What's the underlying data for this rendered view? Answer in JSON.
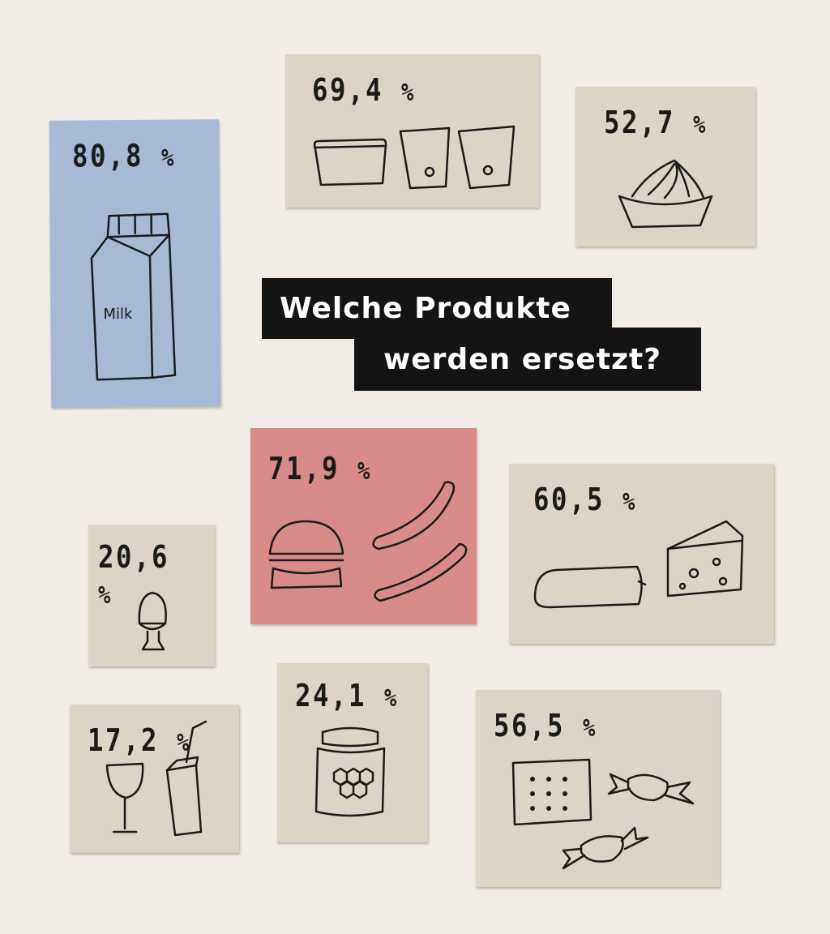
{
  "title": {
    "line1": "Welche Produkte",
    "line2": "werden ersetzt?"
  },
  "colors": {
    "background": "#f1ece6",
    "card": "#ddd4c8",
    "highlight_blue": "#a6b9d7",
    "highlight_red": "#d98c87",
    "ink": "#1b1b1b"
  },
  "products": [
    {
      "value": "80,8",
      "unit": "%",
      "icon": "milk-carton-icon",
      "icon_label": "Milk"
    },
    {
      "value": "69,4",
      "unit": "%",
      "icon": "yogurt-icon"
    },
    {
      "value": "52,7",
      "unit": "%",
      "icon": "cream-bowl-icon"
    },
    {
      "value": "71,9",
      "unit": "%",
      "icon": "burger-sausage-icon"
    },
    {
      "value": "60,5",
      "unit": "%",
      "icon": "salami-cheese-icon"
    },
    {
      "value": "20,6",
      "unit": "%",
      "icon": "egg-icon"
    },
    {
      "value": "17,2",
      "unit": "%",
      "icon": "glass-juice-icon"
    },
    {
      "value": "24,1",
      "unit": "%",
      "icon": "honey-jar-icon"
    },
    {
      "value": "56,5",
      "unit": "%",
      "icon": "biscuit-candy-icon"
    }
  ]
}
